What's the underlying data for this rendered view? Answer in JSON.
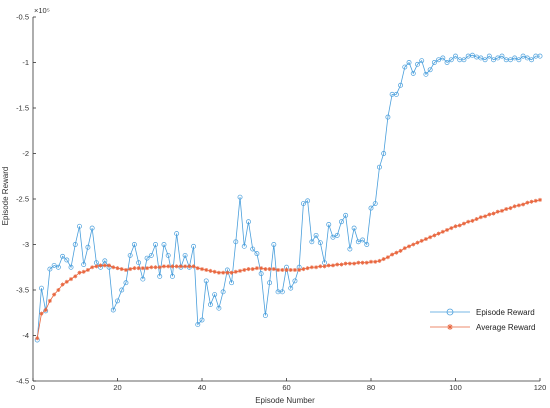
{
  "chart_data": {
    "type": "line",
    "xlabel": "Episode Number",
    "ylabel": "Episode Reward",
    "y_exponent_label": "×10⁵",
    "xlim": [
      0,
      120
    ],
    "ylim": [
      -4.5,
      -0.5
    ],
    "xticks": [
      0,
      20,
      40,
      60,
      80,
      100,
      120
    ],
    "xtick_labels": [
      "0",
      "20",
      "40",
      "60",
      "80",
      "100",
      "120"
    ],
    "yticks": [
      -4.5,
      -4,
      -3.5,
      -3,
      -2.5,
      -2,
      -1.5,
      -1,
      -0.5
    ],
    "ytick_labels": [
      "-4.5",
      "-4",
      "-3.5",
      "-3",
      "-2.5",
      "-2",
      "-1.5",
      "-1",
      "-0.5"
    ],
    "grid": false,
    "legend_position": "lower-right",
    "series": [
      {
        "name": "Episode Reward",
        "color": "#4a9fdc",
        "marker": "circle",
        "x": [
          1,
          2,
          3,
          4,
          5,
          6,
          7,
          8,
          9,
          10,
          11,
          12,
          13,
          14,
          15,
          16,
          17,
          18,
          19,
          20,
          21,
          22,
          23,
          24,
          25,
          26,
          27,
          28,
          29,
          30,
          31,
          32,
          33,
          34,
          35,
          36,
          37,
          38,
          39,
          40,
          41,
          42,
          43,
          44,
          45,
          46,
          47,
          48,
          49,
          50,
          51,
          52,
          53,
          54,
          55,
          56,
          57,
          58,
          59,
          60,
          61,
          62,
          63,
          64,
          65,
          66,
          67,
          68,
          69,
          70,
          71,
          72,
          73,
          74,
          75,
          76,
          77,
          78,
          79,
          80,
          81,
          82,
          83,
          84,
          85,
          86,
          87,
          88,
          89,
          90,
          91,
          92,
          93,
          94,
          95,
          96,
          97,
          98,
          99,
          100,
          101,
          102,
          103,
          104,
          105,
          106,
          107,
          108,
          109,
          110,
          111,
          112,
          113,
          114,
          115,
          116,
          117,
          118,
          119,
          120
        ],
        "values": [
          -4.05,
          -3.48,
          -3.73,
          -3.27,
          -3.23,
          -3.25,
          -3.13,
          -3.17,
          -3.25,
          -3.0,
          -2.8,
          -3.22,
          -3.03,
          -2.82,
          -3.2,
          -3.25,
          -3.18,
          -3.25,
          -3.72,
          -3.62,
          -3.5,
          -3.42,
          -3.12,
          -3.0,
          -3.2,
          -3.38,
          -3.15,
          -3.12,
          -3.0,
          -3.35,
          -3.0,
          -3.12,
          -3.35,
          -2.88,
          -3.25,
          -3.12,
          -3.25,
          -3.02,
          -3.88,
          -3.83,
          -3.4,
          -3.66,
          -3.55,
          -3.7,
          -3.52,
          -3.28,
          -3.42,
          -2.97,
          -2.48,
          -3.02,
          -2.75,
          -3.05,
          -3.1,
          -3.32,
          -3.78,
          -3.42,
          -3.0,
          -3.52,
          -3.52,
          -3.25,
          -3.48,
          -3.4,
          -3.25,
          -2.55,
          -2.52,
          -2.97,
          -2.9,
          -2.98,
          -3.2,
          -2.78,
          -2.92,
          -2.9,
          -2.75,
          -2.68,
          -3.05,
          -2.82,
          -2.97,
          -2.95,
          -3.0,
          -2.6,
          -2.55,
          -2.15,
          -2.0,
          -1.6,
          -1.35,
          -1.35,
          -1.25,
          -1.05,
          -1.0,
          -1.12,
          -1.02,
          -0.98,
          -1.13,
          -1.08,
          -1.0,
          -0.97,
          -0.95,
          -1.0,
          -0.97,
          -0.93,
          -0.97,
          -0.97,
          -0.93,
          -0.92,
          -0.94,
          -0.95,
          -0.97,
          -0.93,
          -0.97,
          -0.95,
          -0.93,
          -0.97,
          -0.97,
          -0.95,
          -0.97,
          -0.93,
          -0.95,
          -0.97,
          -0.93,
          -0.93
        ]
      },
      {
        "name": "Average Reward",
        "color": "#e8643c",
        "marker": "asterisk",
        "x": [
          1,
          2,
          3,
          4,
          5,
          6,
          7,
          8,
          9,
          10,
          11,
          12,
          13,
          14,
          15,
          16,
          17,
          18,
          19,
          20,
          21,
          22,
          23,
          24,
          25,
          26,
          27,
          28,
          29,
          30,
          31,
          32,
          33,
          34,
          35,
          36,
          37,
          38,
          39,
          40,
          41,
          42,
          43,
          44,
          45,
          46,
          47,
          48,
          49,
          50,
          51,
          52,
          53,
          54,
          55,
          56,
          57,
          58,
          59,
          60,
          61,
          62,
          63,
          64,
          65,
          66,
          67,
          68,
          69,
          70,
          71,
          72,
          73,
          74,
          75,
          76,
          77,
          78,
          79,
          80,
          81,
          82,
          83,
          84,
          85,
          86,
          87,
          88,
          89,
          90,
          91,
          92,
          93,
          94,
          95,
          96,
          97,
          98,
          99,
          100,
          101,
          102,
          103,
          104,
          105,
          106,
          107,
          108,
          109,
          110,
          111,
          112,
          113,
          114,
          115,
          116,
          117,
          118,
          119,
          120
        ],
        "values": [
          -4.03,
          -3.76,
          -3.72,
          -3.62,
          -3.55,
          -3.5,
          -3.44,
          -3.41,
          -3.38,
          -3.35,
          -3.31,
          -3.3,
          -3.28,
          -3.25,
          -3.24,
          -3.23,
          -3.23,
          -3.23,
          -3.25,
          -3.26,
          -3.27,
          -3.28,
          -3.27,
          -3.26,
          -3.26,
          -3.26,
          -3.26,
          -3.25,
          -3.25,
          -3.25,
          -3.24,
          -3.24,
          -3.24,
          -3.24,
          -3.24,
          -3.24,
          -3.24,
          -3.24,
          -3.26,
          -3.27,
          -3.28,
          -3.29,
          -3.3,
          -3.31,
          -3.31,
          -3.31,
          -3.31,
          -3.3,
          -3.29,
          -3.28,
          -3.27,
          -3.27,
          -3.26,
          -3.26,
          -3.27,
          -3.27,
          -3.27,
          -3.28,
          -3.28,
          -3.28,
          -3.28,
          -3.28,
          -3.28,
          -3.27,
          -3.26,
          -3.25,
          -3.25,
          -3.24,
          -3.24,
          -3.23,
          -3.23,
          -3.22,
          -3.22,
          -3.21,
          -3.21,
          -3.21,
          -3.2,
          -3.2,
          -3.2,
          -3.19,
          -3.19,
          -3.18,
          -3.16,
          -3.14,
          -3.11,
          -3.09,
          -3.07,
          -3.04,
          -3.02,
          -3.0,
          -2.98,
          -2.96,
          -2.94,
          -2.92,
          -2.9,
          -2.88,
          -2.86,
          -2.84,
          -2.82,
          -2.8,
          -2.79,
          -2.77,
          -2.75,
          -2.74,
          -2.72,
          -2.7,
          -2.69,
          -2.67,
          -2.66,
          -2.64,
          -2.63,
          -2.61,
          -2.6,
          -2.58,
          -2.57,
          -2.56,
          -2.54,
          -2.53,
          -2.52,
          -2.51
        ]
      }
    ]
  }
}
